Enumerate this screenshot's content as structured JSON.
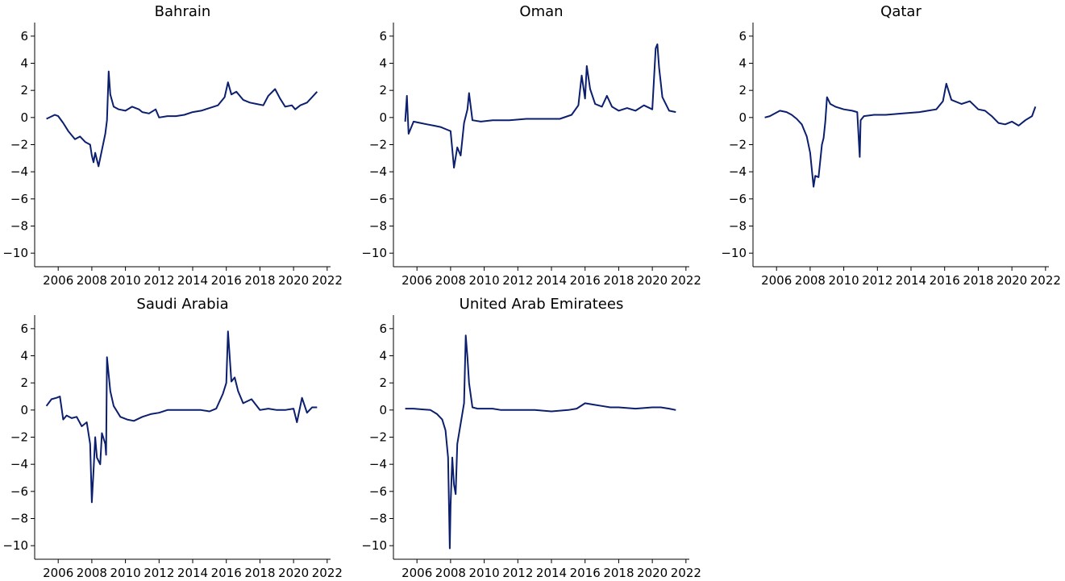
{
  "colors": {
    "series": "#0b1f6e"
  },
  "chart_data": [
    {
      "type": "line",
      "title": "Bahrain",
      "xlim": [
        2004.6,
        2022.2
      ],
      "ylim": [
        -11,
        7
      ],
      "xticks": [
        2006,
        2008,
        2010,
        2012,
        2014,
        2016,
        2018,
        2020,
        2022
      ],
      "yticks": [
        -10,
        -8,
        -6,
        -4,
        -2,
        0,
        2,
        4,
        6
      ],
      "series": [
        {
          "x": [
            2005.3,
            2005.8,
            2006.0,
            2006.3,
            2006.6,
            2007.0,
            2007.3,
            2007.6,
            2007.9,
            2008.0,
            2008.1,
            2008.2,
            2008.4,
            2008.6,
            2008.8,
            2008.9,
            2009.0,
            2009.1,
            2009.3,
            2009.6,
            2010.0,
            2010.4,
            2010.8,
            2011.0,
            2011.4,
            2011.8,
            2012.0,
            2012.5,
            2013.0,
            2013.5,
            2014.0,
            2014.5,
            2015.0,
            2015.5,
            2015.9,
            2016.1,
            2016.3,
            2016.6,
            2017.0,
            2017.4,
            2017.8,
            2018.2,
            2018.5,
            2018.9,
            2019.2,
            2019.5,
            2019.9,
            2020.1,
            2020.4,
            2020.8,
            2021.1,
            2021.4
          ],
          "y": [
            -0.1,
            0.2,
            0.1,
            -0.4,
            -1.0,
            -1.6,
            -1.4,
            -1.8,
            -2.0,
            -2.8,
            -3.3,
            -2.6,
            -3.6,
            -2.4,
            -1.2,
            -0.2,
            3.4,
            1.7,
            0.8,
            0.6,
            0.5,
            0.8,
            0.6,
            0.4,
            0.3,
            0.6,
            0.0,
            0.1,
            0.1,
            0.2,
            0.4,
            0.5,
            0.7,
            0.9,
            1.5,
            2.6,
            1.7,
            1.9,
            1.3,
            1.1,
            1.0,
            0.9,
            1.6,
            2.1,
            1.4,
            0.8,
            0.9,
            0.6,
            0.9,
            1.1,
            1.5,
            1.9
          ]
        }
      ]
    },
    {
      "type": "line",
      "title": "Oman",
      "xlim": [
        2004.6,
        2022.2
      ],
      "ylim": [
        -11,
        7
      ],
      "xticks": [
        2006,
        2008,
        2010,
        2012,
        2014,
        2016,
        2018,
        2020,
        2022
      ],
      "yticks": [
        -10,
        -8,
        -6,
        -4,
        -2,
        0,
        2,
        4,
        6
      ],
      "series": [
        {
          "x": [
            2005.3,
            2005.4,
            2005.5,
            2005.8,
            2006.2,
            2006.6,
            2007.0,
            2007.4,
            2007.8,
            2008.0,
            2008.2,
            2008.4,
            2008.6,
            2008.8,
            2009.0,
            2009.1,
            2009.3,
            2009.8,
            2010.5,
            2011.5,
            2012.5,
            2013.5,
            2014.5,
            2015.2,
            2015.6,
            2015.8,
            2016.0,
            2016.1,
            2016.3,
            2016.6,
            2017.0,
            2017.3,
            2017.6,
            2018.0,
            2018.5,
            2019.0,
            2019.5,
            2020.0,
            2020.2,
            2020.3,
            2020.4,
            2020.6,
            2021.0,
            2021.4
          ],
          "y": [
            -0.3,
            1.6,
            -1.2,
            -0.3,
            -0.4,
            -0.5,
            -0.6,
            -0.7,
            -0.9,
            -1.0,
            -3.7,
            -2.2,
            -2.8,
            -0.4,
            0.6,
            1.8,
            -0.2,
            -0.3,
            -0.2,
            -0.2,
            -0.1,
            -0.1,
            -0.1,
            0.2,
            0.9,
            3.1,
            1.4,
            3.8,
            2.1,
            1.0,
            0.8,
            1.6,
            0.8,
            0.5,
            0.7,
            0.5,
            0.9,
            0.6,
            5.1,
            5.4,
            3.7,
            1.5,
            0.5,
            0.4
          ]
        }
      ]
    },
    {
      "type": "line",
      "title": "Qatar",
      "xlim": [
        2004.6,
        2022.2
      ],
      "ylim": [
        -11,
        7
      ],
      "xticks": [
        2006,
        2008,
        2010,
        2012,
        2014,
        2016,
        2018,
        2020,
        2022
      ],
      "yticks": [
        -10,
        -8,
        -6,
        -4,
        -2,
        0,
        2,
        4,
        6
      ],
      "series": [
        {
          "x": [
            2005.3,
            2005.6,
            2005.9,
            2006.2,
            2006.6,
            2006.9,
            2007.2,
            2007.5,
            2007.8,
            2008.0,
            2008.2,
            2008.3,
            2008.5,
            2008.7,
            2008.8,
            2008.9,
            2009.0,
            2009.2,
            2009.5,
            2010.0,
            2010.5,
            2010.8,
            2010.95,
            2011.0,
            2011.2,
            2011.8,
            2012.5,
            2013.5,
            2014.5,
            2015.0,
            2015.5,
            2015.9,
            2016.1,
            2016.4,
            2017.0,
            2017.5,
            2018.0,
            2018.4,
            2018.8,
            2019.2,
            2019.6,
            2020.0,
            2020.4,
            2020.8,
            2021.2,
            2021.4
          ],
          "y": [
            0.0,
            0.1,
            0.3,
            0.5,
            0.4,
            0.2,
            -0.1,
            -0.5,
            -1.4,
            -2.6,
            -5.1,
            -4.3,
            -4.4,
            -2.0,
            -1.5,
            -0.3,
            1.5,
            1.0,
            0.8,
            0.6,
            0.5,
            0.4,
            -2.9,
            -0.2,
            0.1,
            0.2,
            0.2,
            0.3,
            0.4,
            0.5,
            0.6,
            1.2,
            2.5,
            1.3,
            1.0,
            1.2,
            0.6,
            0.5,
            0.1,
            -0.4,
            -0.5,
            -0.3,
            -0.6,
            -0.2,
            0.1,
            0.8
          ]
        }
      ]
    },
    {
      "type": "line",
      "title": "Saudi Arabia",
      "xlim": [
        2004.6,
        2022.2
      ],
      "ylim": [
        -11,
        7
      ],
      "xticks": [
        2006,
        2008,
        2010,
        2012,
        2014,
        2016,
        2018,
        2020,
        2022
      ],
      "yticks": [
        -10,
        -8,
        -6,
        -4,
        -2,
        0,
        2,
        4,
        6
      ],
      "series": [
        {
          "x": [
            2005.3,
            2005.6,
            2005.9,
            2006.1,
            2006.3,
            2006.5,
            2006.8,
            2007.1,
            2007.4,
            2007.7,
            2007.9,
            2008.0,
            2008.1,
            2008.2,
            2008.3,
            2008.5,
            2008.6,
            2008.8,
            2008.85,
            2008.9,
            2009.1,
            2009.3,
            2009.7,
            2010.1,
            2010.5,
            2011.0,
            2011.5,
            2012.0,
            2012.5,
            2013.5,
            2014.5,
            2015.0,
            2015.4,
            2015.8,
            2016.0,
            2016.1,
            2016.3,
            2016.5,
            2016.7,
            2017.0,
            2017.5,
            2018.0,
            2018.5,
            2019.0,
            2019.5,
            2020.0,
            2020.2,
            2020.5,
            2020.8,
            2021.1,
            2021.4
          ],
          "y": [
            0.3,
            0.8,
            0.9,
            1.0,
            -0.7,
            -0.4,
            -0.6,
            -0.5,
            -1.2,
            -0.9,
            -2.5,
            -6.8,
            -4.5,
            -2.0,
            -3.5,
            -4.0,
            -1.7,
            -2.5,
            -3.3,
            3.9,
            1.4,
            0.3,
            -0.5,
            -0.7,
            -0.8,
            -0.5,
            -0.3,
            -0.2,
            0.0,
            0.0,
            0.0,
            -0.1,
            0.1,
            1.2,
            2.0,
            5.8,
            2.1,
            2.4,
            1.4,
            0.5,
            0.8,
            0.0,
            0.1,
            0.0,
            0.0,
            0.1,
            -0.9,
            0.9,
            -0.2,
            0.2,
            0.2
          ]
        }
      ]
    },
    {
      "type": "line",
      "title": "United Arab Emiratees",
      "xlim": [
        2004.6,
        2022.2
      ],
      "ylim": [
        -11,
        7
      ],
      "xticks": [
        2006,
        2008,
        2010,
        2012,
        2014,
        2016,
        2018,
        2020,
        2022
      ],
      "yticks": [
        -10,
        -8,
        -6,
        -4,
        -2,
        0,
        2,
        4,
        6
      ],
      "series": [
        {
          "x": [
            2005.3,
            2005.8,
            2006.3,
            2006.8,
            2007.2,
            2007.5,
            2007.7,
            2007.85,
            2007.95,
            2008.0,
            2008.1,
            2008.2,
            2008.3,
            2008.4,
            2008.6,
            2008.8,
            2008.9,
            2009.0,
            2009.1,
            2009.3,
            2009.6,
            2010.0,
            2010.5,
            2011.0,
            2012.0,
            2013.0,
            2014.0,
            2015.0,
            2015.5,
            2016.0,
            2016.5,
            2017.0,
            2017.5,
            2018.0,
            2019.0,
            2020.0,
            2020.5,
            2021.0,
            2021.4
          ],
          "y": [
            0.1,
            0.1,
            0.05,
            0.0,
            -0.3,
            -0.7,
            -1.5,
            -3.5,
            -10.2,
            -7.0,
            -3.5,
            -5.5,
            -6.2,
            -2.5,
            -1.0,
            0.5,
            5.5,
            3.9,
            2.0,
            0.2,
            0.1,
            0.1,
            0.1,
            0.0,
            0.0,
            0.0,
            -0.1,
            0.0,
            0.1,
            0.5,
            0.4,
            0.3,
            0.2,
            0.2,
            0.1,
            0.2,
            0.2,
            0.1,
            0.0
          ]
        }
      ]
    }
  ]
}
